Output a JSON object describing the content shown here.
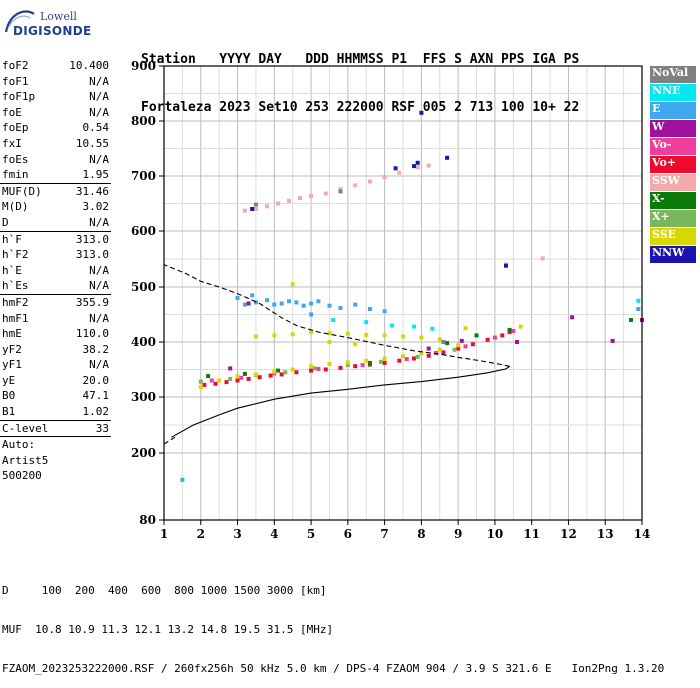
{
  "logo": {
    "line1": "Lowell",
    "line2": "DIGISONDE"
  },
  "header": {
    "labels": "Station   YYYY DAY   DDD HHMMSS P1  FFS S AXN PPS IGA PS",
    "values": "Fortaleza 2023 Set10 253 222000 RSF 005 2 713 100 10+ 22"
  },
  "params": [
    {
      "type": "row",
      "name": "foF2",
      "value": "10.400"
    },
    {
      "type": "row",
      "name": "foF1",
      "value": "N/A"
    },
    {
      "type": "row",
      "name": "foF1p",
      "value": "N/A"
    },
    {
      "type": "row",
      "name": "foE",
      "value": "N/A"
    },
    {
      "type": "row",
      "name": "foEp",
      "value": "0.54"
    },
    {
      "type": "row",
      "name": "fxI",
      "value": "10.55"
    },
    {
      "type": "row",
      "name": "foEs",
      "value": "N/A"
    },
    {
      "type": "row",
      "name": "fmin",
      "value": "1.95"
    },
    {
      "type": "sep"
    },
    {
      "type": "row",
      "name": "MUF(D)",
      "value": "31.46"
    },
    {
      "type": "row",
      "name": "M(D)",
      "value": "3.02"
    },
    {
      "type": "row",
      "name": "D",
      "value": "N/A"
    },
    {
      "type": "sep"
    },
    {
      "type": "row",
      "name": "h`F",
      "value": "313.0"
    },
    {
      "type": "row",
      "name": "h`F2",
      "value": "313.0"
    },
    {
      "type": "row",
      "name": "h`E",
      "value": "N/A"
    },
    {
      "type": "row",
      "name": "h`Es",
      "value": "N/A"
    },
    {
      "type": "sep"
    },
    {
      "type": "row",
      "name": "hmF2",
      "value": "355.9"
    },
    {
      "type": "row",
      "name": "hmF1",
      "value": "N/A"
    },
    {
      "type": "row",
      "name": "hmE",
      "value": "110.0"
    },
    {
      "type": "row",
      "name": "yF2",
      "value": "38.2"
    },
    {
      "type": "row",
      "name": "yF1",
      "value": "N/A"
    },
    {
      "type": "row",
      "name": "yE",
      "value": "20.0"
    },
    {
      "type": "row",
      "name": "B0",
      "value": "47.1"
    },
    {
      "type": "row",
      "name": "B1",
      "value": "1.02"
    },
    {
      "type": "sep"
    },
    {
      "type": "row",
      "name": "C-level",
      "value": "33"
    },
    {
      "type": "sep"
    },
    {
      "type": "text",
      "value": "Auto:"
    },
    {
      "type": "text",
      "value": "Artist5"
    },
    {
      "type": "text",
      "value": "500200"
    }
  ],
  "legend": [
    {
      "label": "NoVal",
      "color": "#808080"
    },
    {
      "label": "NNE",
      "color": "#00e8f0"
    },
    {
      "label": "E",
      "color": "#3fa6f0"
    },
    {
      "label": "W",
      "color": "#a0109c"
    },
    {
      "label": "Vo-",
      "color": "#f03e9c"
    },
    {
      "label": "Vo+",
      "color": "#ee0a2c"
    },
    {
      "label": "SSW",
      "color": "#f2aaaa"
    },
    {
      "label": "X-",
      "color": "#0a7a0a"
    },
    {
      "label": "X+",
      "color": "#7ab65a"
    },
    {
      "label": "SSE",
      "color": "#d8d800"
    },
    {
      "label": "NNW",
      "color": "#1c14b0"
    }
  ],
  "footer": {
    "line1": "D     100  200  400  600  800 1000 1500 3000 [km]",
    "line2": "MUF  10.8 10.9 11.3 12.1 13.2 14.8 19.5 31.5 [MHz]",
    "line3": "FZAOM_2023253222000.RSF / 260fx256h 50 kHz 5.0 km / DPS-4 FZAOM 904 / 3.9 S 321.6 E   Ion2Png 1.3.20"
  },
  "chart_data": {
    "type": "scatter",
    "title": "",
    "xlabel": "",
    "ylabel": "",
    "xlim": [
      1,
      14
    ],
    "ylim": [
      80,
      900
    ],
    "x_ticks": [
      1,
      2,
      3,
      4,
      5,
      6,
      7,
      8,
      9,
      10,
      11,
      12,
      13,
      14
    ],
    "y_ticks": [
      80,
      200,
      300,
      400,
      500,
      600,
      700,
      800,
      900
    ],
    "grid": true,
    "legend_position": "right",
    "series": [
      {
        "name": "Vo+",
        "color": "#ee0a2c",
        "points": [
          [
            2.1,
            322
          ],
          [
            2.4,
            324
          ],
          [
            2.7,
            327
          ],
          [
            3.0,
            330
          ],
          [
            3.3,
            333
          ],
          [
            3.6,
            336
          ],
          [
            3.9,
            339
          ],
          [
            4.2,
            341
          ],
          [
            4.6,
            345
          ],
          [
            5.0,
            348
          ],
          [
            5.4,
            350
          ],
          [
            5.8,
            353
          ],
          [
            6.2,
            356
          ],
          [
            6.6,
            359
          ],
          [
            7.0,
            362
          ],
          [
            7.4,
            366
          ],
          [
            7.8,
            370
          ],
          [
            8.2,
            375
          ],
          [
            8.6,
            381
          ],
          [
            9.0,
            388
          ],
          [
            9.4,
            396
          ],
          [
            9.8,
            404
          ],
          [
            10.2,
            412
          ],
          [
            10.4,
            418
          ]
        ]
      },
      {
        "name": "Vo-",
        "color": "#f03e9c",
        "points": [
          [
            2.3,
            330
          ],
          [
            3.1,
            335
          ],
          [
            4.0,
            343
          ],
          [
            5.2,
            351
          ],
          [
            6.4,
            358
          ],
          [
            7.6,
            369
          ],
          [
            8.4,
            380
          ],
          [
            9.2,
            392
          ],
          [
            10.0,
            408
          ],
          [
            10.5,
            420
          ]
        ]
      },
      {
        "name": "X+",
        "color": "#7ab65a",
        "points": [
          [
            2.0,
            328
          ],
          [
            2.8,
            333
          ],
          [
            3.5,
            340
          ],
          [
            4.3,
            345
          ],
          [
            5.1,
            352
          ],
          [
            6.0,
            358
          ],
          [
            6.9,
            364
          ],
          [
            7.9,
            373
          ],
          [
            8.9,
            386
          ]
        ]
      },
      {
        "name": "X-",
        "color": "#0a7a0a",
        "points": [
          [
            2.2,
            338
          ],
          [
            3.2,
            342
          ],
          [
            4.1,
            348
          ],
          [
            6.6,
            362
          ],
          [
            8.7,
            398
          ],
          [
            9.5,
            412
          ],
          [
            10.4,
            422
          ],
          [
            13.7,
            440
          ]
        ]
      },
      {
        "name": "SSE",
        "color": "#d8d800",
        "points": [
          [
            2.0,
            318
          ],
          [
            2.5,
            330
          ],
          [
            3.0,
            337
          ],
          [
            3.5,
            341
          ],
          [
            4.0,
            346
          ],
          [
            4.5,
            350
          ],
          [
            5.0,
            356
          ],
          [
            5.5,
            360
          ],
          [
            6.0,
            363
          ],
          [
            6.5,
            366
          ],
          [
            7.0,
            370
          ],
          [
            7.5,
            374
          ],
          [
            8.0,
            379
          ],
          [
            8.5,
            386
          ],
          [
            9.0,
            394
          ],
          [
            3.5,
            410
          ],
          [
            4.0,
            412
          ],
          [
            4.5,
            414
          ],
          [
            5.0,
            418
          ],
          [
            5.5,
            416
          ],
          [
            6.0,
            415
          ],
          [
            6.5,
            413
          ],
          [
            7.0,
            412
          ],
          [
            7.5,
            410
          ],
          [
            8.0,
            408
          ],
          [
            8.5,
            405
          ],
          [
            9.2,
            425
          ],
          [
            10.7,
            428
          ],
          [
            4.5,
            505
          ],
          [
            5.5,
            400
          ],
          [
            6.2,
            396
          ]
        ]
      },
      {
        "name": "E",
        "color": "#3fa6f0",
        "points": [
          [
            3.0,
            480
          ],
          [
            3.2,
            468
          ],
          [
            3.5,
            472
          ],
          [
            3.8,
            476
          ],
          [
            4.0,
            468
          ],
          [
            4.2,
            470
          ],
          [
            4.4,
            474
          ],
          [
            4.6,
            472
          ],
          [
            4.8,
            466
          ],
          [
            5.0,
            470
          ],
          [
            5.2,
            474
          ],
          [
            5.5,
            466
          ],
          [
            5.8,
            462
          ],
          [
            6.2,
            468
          ],
          [
            6.6,
            460
          ],
          [
            7.0,
            456
          ],
          [
            5.0,
            450
          ],
          [
            3.4,
            485
          ],
          [
            13.9,
            460
          ],
          [
            1.5,
            152
          ]
        ]
      },
      {
        "name": "NNE",
        "color": "#00e8f0",
        "points": [
          [
            5.6,
            440
          ],
          [
            6.5,
            436
          ],
          [
            7.2,
            430
          ],
          [
            7.8,
            428
          ],
          [
            8.3,
            424
          ],
          [
            13.9,
            475
          ]
        ]
      },
      {
        "name": "W",
        "color": "#a0109c",
        "points": [
          [
            2.8,
            352
          ],
          [
            3.3,
            470
          ],
          [
            8.2,
            388
          ],
          [
            9.1,
            402
          ],
          [
            10.6,
            400
          ],
          [
            12.1,
            445
          ],
          [
            13.2,
            402
          ],
          [
            14.0,
            440
          ]
        ]
      },
      {
        "name": "SSW",
        "color": "#f2aaaa",
        "points": [
          [
            3.2,
            637
          ],
          [
            3.5,
            640
          ],
          [
            3.8,
            645
          ],
          [
            4.1,
            650
          ],
          [
            4.4,
            655
          ],
          [
            4.7,
            660
          ],
          [
            5.0,
            664
          ],
          [
            5.4,
            668
          ],
          [
            5.8,
            676
          ],
          [
            6.2,
            683
          ],
          [
            6.6,
            690
          ],
          [
            7.0,
            698
          ],
          [
            7.4,
            706
          ],
          [
            7.9,
            716
          ],
          [
            8.2,
            719
          ],
          [
            11.3,
            551
          ],
          [
            10.3,
            540
          ]
        ]
      },
      {
        "name": "NNW",
        "color": "#1c14b0",
        "points": [
          [
            3.4,
            640
          ],
          [
            7.9,
            724
          ],
          [
            8.7,
            733
          ],
          [
            8.0,
            815
          ],
          [
            10.3,
            538
          ],
          [
            7.3,
            714
          ],
          [
            7.8,
            718
          ]
        ]
      },
      {
        "name": "NoVal",
        "color": "#808080",
        "points": [
          [
            3.5,
            648
          ],
          [
            5.8,
            672
          ],
          [
            8.6,
            400
          ]
        ]
      }
    ],
    "profile_solid": [
      [
        1.2,
        228
      ],
      [
        1.8,
        250
      ],
      [
        2.5,
        268
      ],
      [
        3.0,
        280
      ],
      [
        4.0,
        296
      ],
      [
        5.0,
        307
      ],
      [
        6.0,
        314
      ],
      [
        7.0,
        322
      ],
      [
        8.0,
        328
      ],
      [
        9.0,
        336
      ],
      [
        9.8,
        344
      ],
      [
        10.3,
        351
      ],
      [
        10.4,
        355.9
      ]
    ],
    "profile_dashed": [
      [
        10.4,
        355.9
      ],
      [
        10.1,
        360
      ],
      [
        9.6,
        366
      ],
      [
        9.0,
        372
      ],
      [
        8.5,
        378
      ],
      [
        7.8,
        384
      ],
      [
        7.0,
        394
      ],
      [
        6.0,
        408
      ],
      [
        5.2,
        418
      ],
      [
        4.6,
        430
      ],
      [
        4.2,
        444
      ],
      [
        3.6,
        470
      ],
      [
        3.0,
        488
      ],
      [
        2.5,
        500
      ],
      [
        2.0,
        510
      ],
      [
        1.6,
        524
      ],
      [
        1.0,
        540
      ]
    ],
    "profile_dashed_low": [
      [
        1.0,
        216
      ],
      [
        1.3,
        228
      ]
    ]
  }
}
